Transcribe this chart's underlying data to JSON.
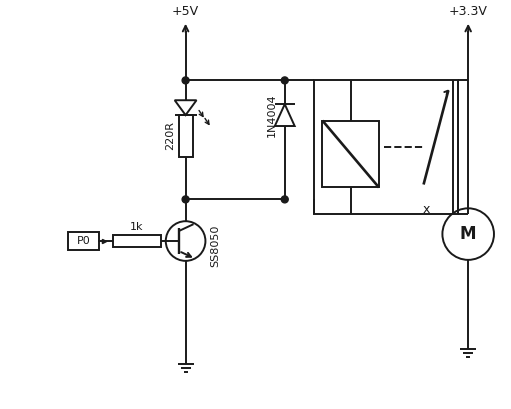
{
  "bg_color": "#ffffff",
  "line_color": "#1a1a1a",
  "line_width": 1.4,
  "vcc5_label": "+5V",
  "vcc33_label": "+3.3V",
  "r1_label": "220R",
  "r2_label": "1k",
  "diode_label": "1N4004",
  "transistor_label": "SS8050",
  "input_label": "P0",
  "motor_label": "M"
}
